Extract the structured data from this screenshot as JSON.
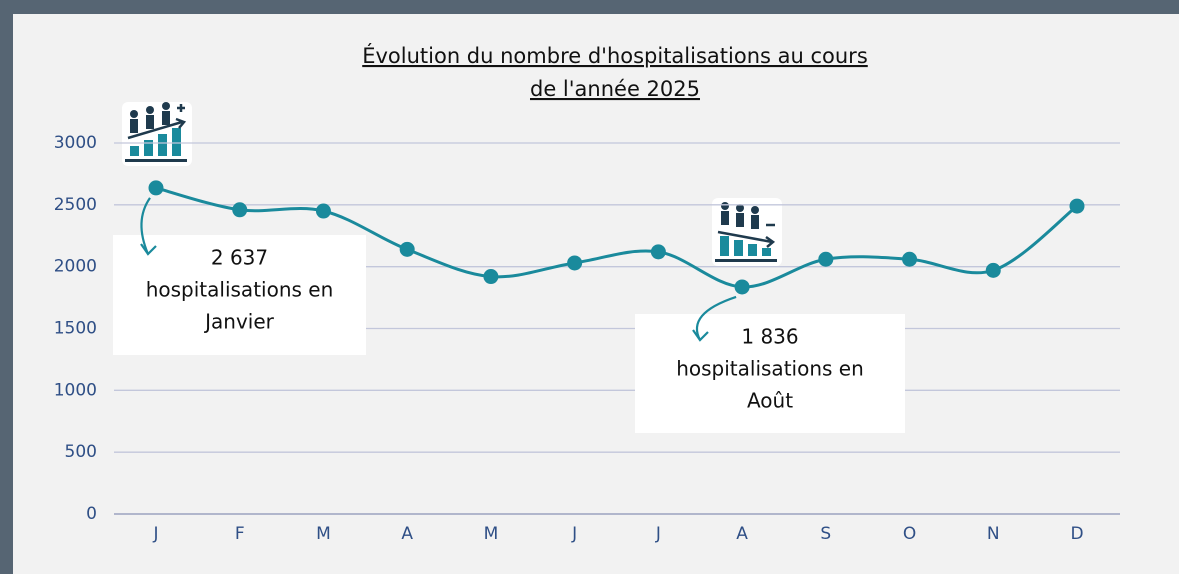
{
  "chart_data": {
    "type": "line",
    "title": [
      "Évolution du nombre d'hospitalisations au cours",
      "de l'année 2025"
    ],
    "categories": [
      "J",
      "F",
      "M",
      "A",
      "M",
      "J",
      "J",
      "A",
      "S",
      "O",
      "N",
      "D"
    ],
    "series": [
      {
        "name": "Hospitalisations",
        "color": "#1a8a9c",
        "values": [
          2637,
          2460,
          2450,
          2140,
          1920,
          2030,
          2120,
          1836,
          2060,
          2060,
          1970,
          2490
        ]
      }
    ],
    "ylim": [
      0,
      3000
    ],
    "yticks": [
      0,
      500,
      1000,
      1500,
      2000,
      2500,
      3000
    ],
    "grid": true,
    "annotations": [
      {
        "index": 0,
        "lines": [
          "2 637",
          "hospitalisations en",
          "Janvier"
        ]
      },
      {
        "index": 7,
        "lines": [
          "1 836",
          "hospitalisations en",
          "Août"
        ]
      }
    ]
  }
}
